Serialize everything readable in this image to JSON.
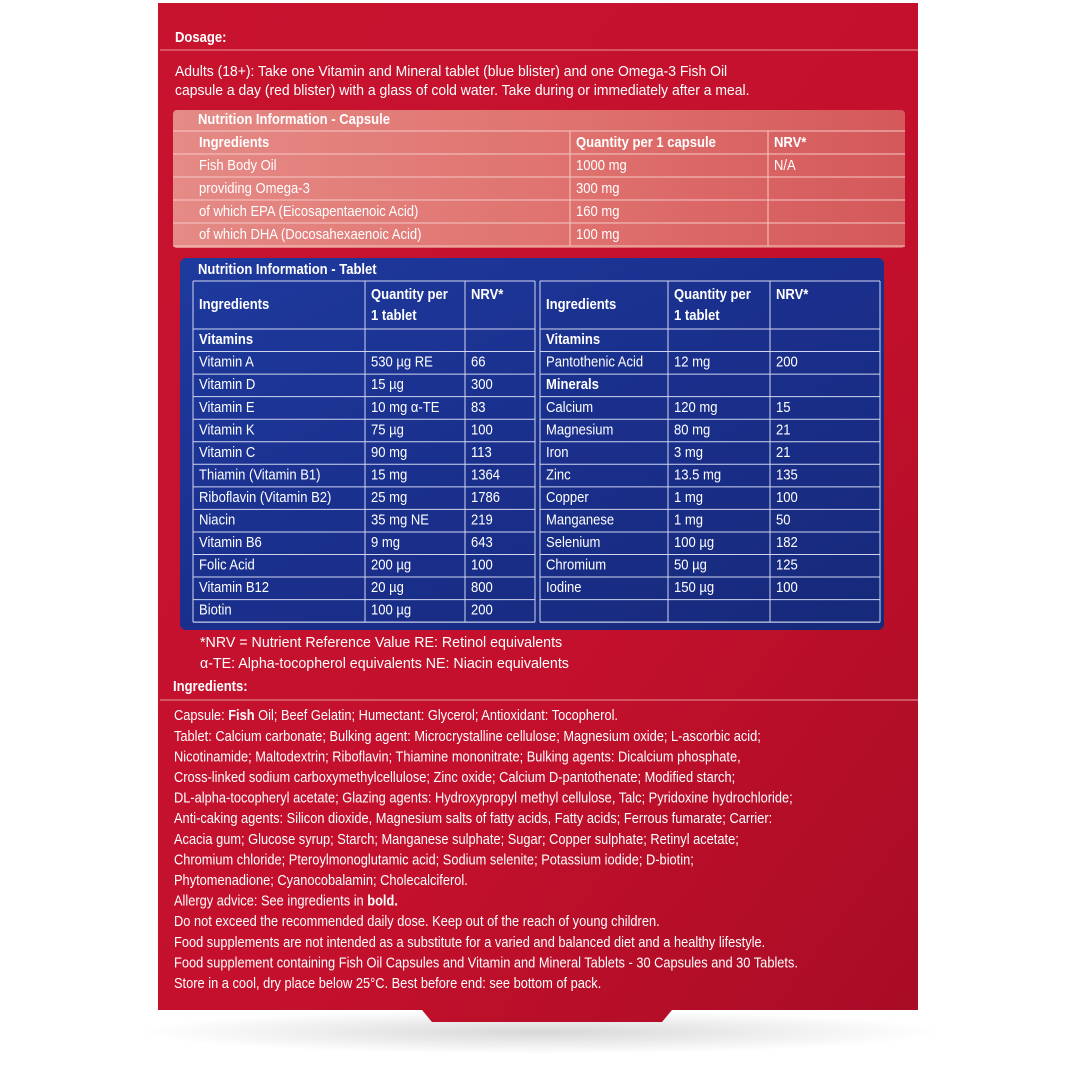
{
  "dosage": {
    "title": "Dosage:",
    "lines": [
      "Adults (18+): Take one Vitamin and Mineral tablet (blue blister) and one Omega-3 Fish Oil",
      "capsule a day (red blister) with a glass of cold water. Take during or immediately after a meal."
    ]
  },
  "capsule_table": {
    "title": "Nutrition Information - Capsule",
    "header": [
      "Ingredients",
      "Quantity per 1 capsule",
      "NRV*"
    ],
    "rows": [
      [
        "Fish Body Oil",
        "1000 mg",
        "N/A"
      ],
      [
        "providing Omega-3",
        "300 mg",
        null
      ],
      [
        "of which EPA (Eicosapentaenoic Acid)",
        "160 mg",
        null
      ],
      [
        "of which DHA (Docosahexaenoic Acid)",
        "100 mg",
        null
      ]
    ]
  },
  "tablet_table": {
    "title": "Nutrition Information - Tablet",
    "left": {
      "header": [
        "Ingredients",
        [
          "Quantity per",
          "1 tablet"
        ],
        "NRV*"
      ],
      "rows": [
        [
          "Vitamins"
        ],
        [
          "Vitamin A",
          "530 µg RE",
          "66"
        ],
        [
          "Vitamin D",
          "15 µg",
          "300"
        ],
        [
          "Vitamin E",
          "10 mg α-TE",
          "83"
        ],
        [
          "Vitamin K",
          "75 µg",
          "100"
        ],
        [
          "Vitamin C",
          "90 mg",
          "113"
        ],
        [
          "Thiamin (Vitamin B1)",
          "15 mg",
          "1364"
        ],
        [
          "Riboflavin (Vitamin B2)",
          "25 mg",
          "1786"
        ],
        [
          "Niacin",
          "35 mg NE",
          "219"
        ],
        [
          "Vitamin B6",
          "9 mg",
          "643"
        ],
        [
          "Folic Acid",
          "200 µg",
          "100"
        ],
        [
          "Vitamin B12",
          "20 µg",
          "800"
        ],
        [
          "Biotin",
          "100 µg",
          "200"
        ]
      ]
    },
    "right": {
      "header": [
        "Ingredients",
        [
          "Quantity per",
          "1 tablet"
        ],
        "NRV*"
      ],
      "rows": [
        [
          "Vitamins"
        ],
        [
          "Pantothenic Acid",
          "12 mg",
          "200"
        ],
        [
          "Minerals"
        ],
        [
          "Calcium",
          "120 mg",
          "15"
        ],
        [
          "Magnesium",
          "80 mg",
          "21"
        ],
        [
          "Iron",
          "3 mg",
          "21"
        ],
        [
          "Zinc",
          "13.5 mg",
          "135"
        ],
        [
          "Copper",
          "1 mg",
          "100"
        ],
        [
          "Manganese",
          "1 mg",
          "50"
        ],
        [
          "Selenium",
          "100 µg",
          "182"
        ],
        [
          "Chromium",
          "50 µg",
          "125"
        ],
        [
          "Iodine",
          "150 µg",
          "100"
        ]
      ]
    }
  },
  "footnotes": [
    "*NRV = Nutrient Reference Value  RE: Retinol equivalents",
    "α-TE: Alpha-tocopherol equivalents  NE: Niacin equivalents"
  ],
  "ingredients": {
    "title": "Ingredients:",
    "lines": [
      [
        "Capsule: ",
        "Fish",
        " Oil; Beef Gelatin; Humectant: Glycerol; Antioxidant: Tocopherol."
      ],
      [
        "Tablet: Calcium carbonate; Bulking agent: Microcrystalline cellulose; Magnesium oxide; L-ascorbic acid;"
      ],
      [
        "Nicotinamide; Maltodextrin; Riboflavin; Thiamine mononitrate; Bulking agents: Dicalcium phosphate,"
      ],
      [
        "Cross-linked sodium carboxymethylcellulose; Zinc oxide; Calcium D-pantothenate; Modified starch;"
      ],
      [
        "DL-alpha-tocopheryl acetate; Glazing agents: Hydroxypropyl methyl cellulose, Talc; Pyridoxine hydrochloride;"
      ],
      [
        "Anti-caking agents: Silicon dioxide, Magnesium salts of fatty acids, Fatty acids; Ferrous fumarate; Carrier:"
      ],
      [
        "Acacia gum; Glucose syrup; Starch; Manganese sulphate; Sugar; Copper sulphate; Retinyl acetate;"
      ],
      [
        "Chromium chloride; Pteroylmonoglutamic acid; Sodium selenite; Potassium iodide; D-biotin;"
      ],
      [
        "Phytomenadione; Cyanocobalamin; Cholecalciferol."
      ],
      [
        "Allergy advice: See ingredients in ",
        "bold."
      ],
      [
        "Do not exceed the recommended daily dose. Keep out of the reach of young children."
      ],
      [
        "Food supplements are not intended as a substitute for a varied and balanced diet and a healthy lifestyle."
      ],
      [
        "Food supplement containing Fish Oil Capsules and Vitamin and Mineral Tablets - 30 Capsules and 30 Tablets."
      ],
      [
        "Store in a cool, dry place below 25°C. Best before end: see bottom of pack."
      ]
    ]
  }
}
